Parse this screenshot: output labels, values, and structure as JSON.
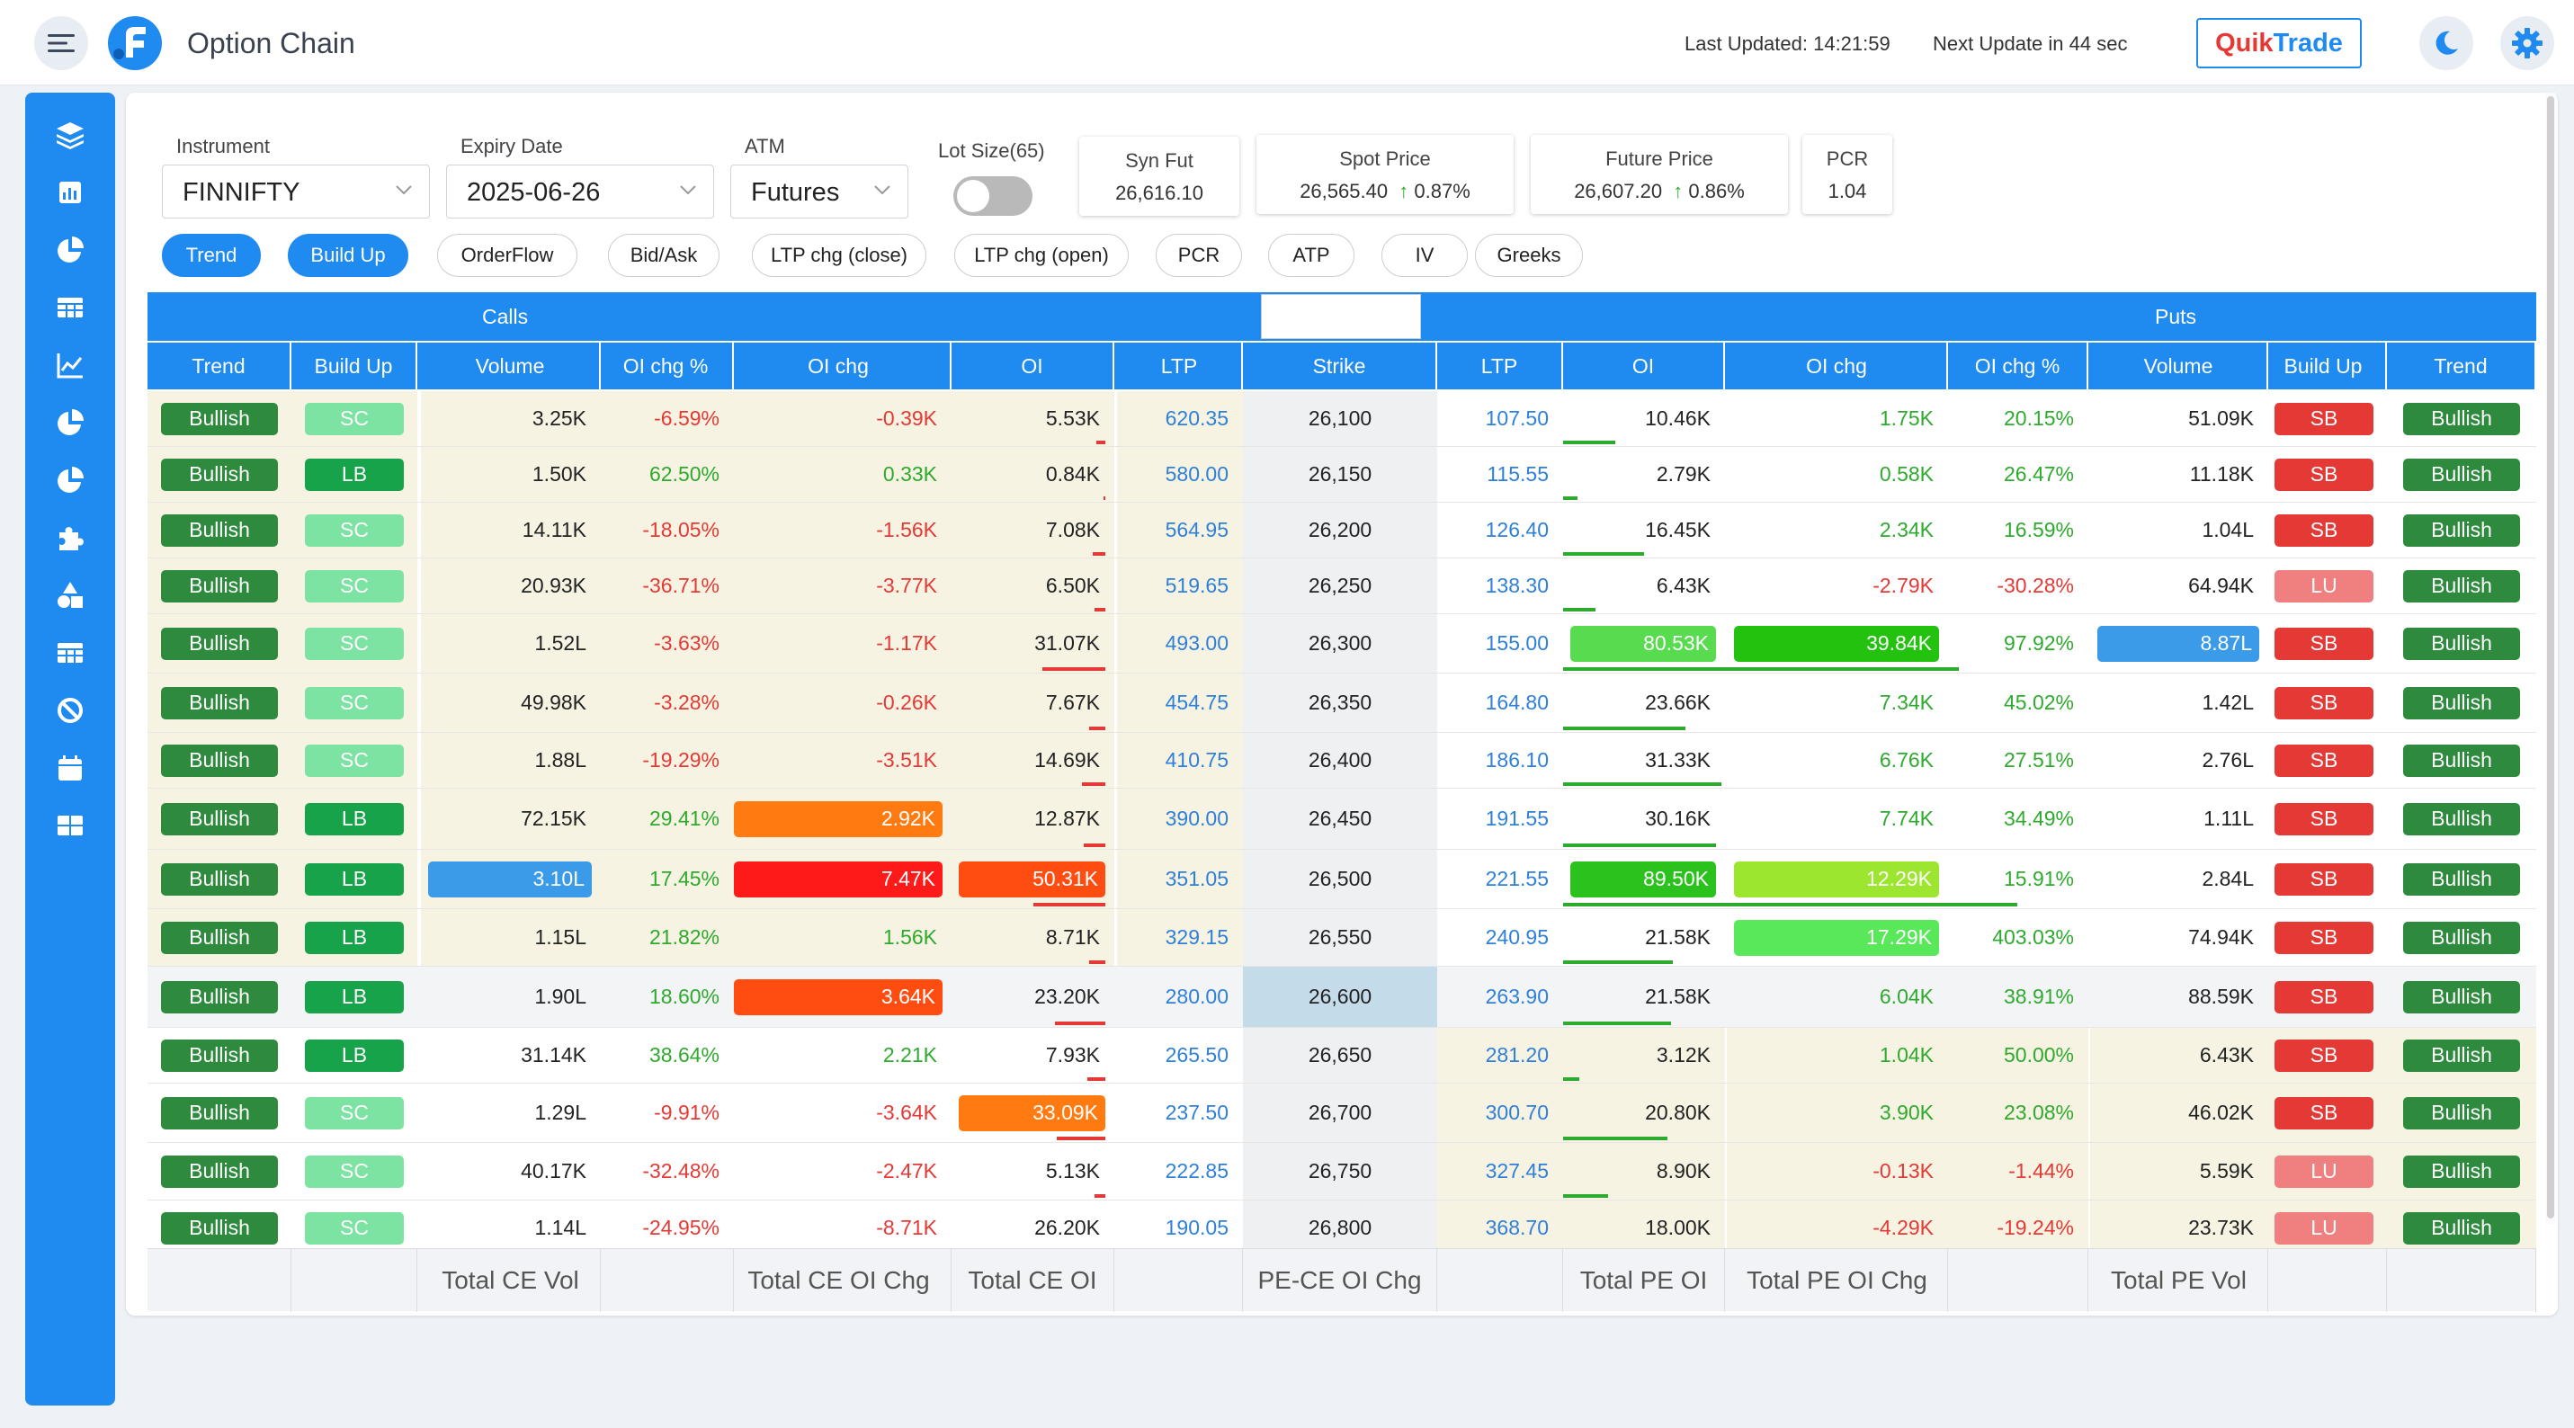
{
  "header": {
    "title": "Option Chain",
    "last_updated": "Last Updated: 14:21:59",
    "next_update": "Next Update in 44 sec",
    "quiktrade_a": "Quik",
    "quiktrade_b": "Trade"
  },
  "filters": {
    "instrument_label": "Instrument",
    "instrument_value": "FINNIFTY",
    "expiry_label": "Expiry Date",
    "expiry_value": "2025-06-26",
    "atm_label": "ATM",
    "atm_value": "Futures",
    "lot_label": "Lot Size(65)"
  },
  "cards": {
    "synfut_label": "Syn Fut",
    "synfut_value": "26,616.10",
    "spot_label": "Spot Price",
    "spot_value": "26,565.40",
    "spot_chg": "0.87%",
    "fut_label": "Future Price",
    "fut_value": "26,607.20",
    "fut_chg": "0.86%",
    "pcr_label": "PCR",
    "pcr_value": "1.04"
  },
  "tabs": [
    "Trend",
    "Build Up",
    "OrderFlow",
    "Bid/Ask",
    "LTP chg (close)",
    "LTP chg (open)",
    "PCR",
    "ATP",
    "IV",
    "Greeks"
  ],
  "table": {
    "calls_label": "Calls",
    "puts_label": "Puts",
    "strike_count": "10",
    "headers": [
      "Trend",
      "Build Up",
      "Volume",
      "OI chg %",
      "OI chg",
      "OI",
      "LTP",
      "Strike",
      "LTP",
      "OI",
      "OI chg",
      "OI chg %",
      "Volume",
      "Build Up",
      "Trend"
    ],
    "rows": [
      {
        "ct": "Bullish",
        "cb": "SC",
        "cv": "3.25K",
        "cop": "-6.59%",
        "coc": "-0.39K",
        "coi": "5.53K",
        "cltp": "620.35",
        "strike": "26,100",
        "pltp": "107.50",
        "poi": "10.46K",
        "poc": "1.75K",
        "pop": "20.15%",
        "pv": "51.09K",
        "pb": "SB",
        "pt": "Bullish"
      },
      {
        "ct": "Bullish",
        "cb": "LB",
        "cv": "1.50K",
        "cop": "62.50%",
        "coc": "0.33K",
        "coi": "0.84K",
        "cltp": "580.00",
        "strike": "26,150",
        "pltp": "115.55",
        "poi": "2.79K",
        "poc": "0.58K",
        "pop": "26.47%",
        "pv": "11.18K",
        "pb": "SB",
        "pt": "Bullish"
      },
      {
        "ct": "Bullish",
        "cb": "SC",
        "cv": "14.11K",
        "cop": "-18.05%",
        "coc": "-1.56K",
        "coi": "7.08K",
        "cltp": "564.95",
        "strike": "26,200",
        "pltp": "126.40",
        "poi": "16.45K",
        "poc": "2.34K",
        "pop": "16.59%",
        "pv": "1.04L",
        "pb": "SB",
        "pt": "Bullish"
      },
      {
        "ct": "Bullish",
        "cb": "SC",
        "cv": "20.93K",
        "cop": "-36.71%",
        "coc": "-3.77K",
        "coi": "6.50K",
        "cltp": "519.65",
        "strike": "26,250",
        "pltp": "138.30",
        "poi": "6.43K",
        "poc": "-2.79K",
        "pop": "-30.28%",
        "pv": "64.94K",
        "pb": "LU",
        "pt": "Bullish"
      },
      {
        "ct": "Bullish",
        "cb": "SC",
        "cv": "1.52L",
        "cop": "-3.63%",
        "coc": "-1.17K",
        "coi": "31.07K",
        "cltp": "493.00",
        "strike": "26,300",
        "pltp": "155.00",
        "poi": "80.53K",
        "poc": "39.84K",
        "pop": "97.92%",
        "pv": "8.87L",
        "pb": "SB",
        "pt": "Bullish"
      },
      {
        "ct": "Bullish",
        "cb": "SC",
        "cv": "49.98K",
        "cop": "-3.28%",
        "coc": "-0.26K",
        "coi": "7.67K",
        "cltp": "454.75",
        "strike": "26,350",
        "pltp": "164.80",
        "poi": "23.66K",
        "poc": "7.34K",
        "pop": "45.02%",
        "pv": "1.42L",
        "pb": "SB",
        "pt": "Bullish"
      },
      {
        "ct": "Bullish",
        "cb": "SC",
        "cv": "1.88L",
        "cop": "-19.29%",
        "coc": "-3.51K",
        "coi": "14.69K",
        "cltp": "410.75",
        "strike": "26,400",
        "pltp": "186.10",
        "poi": "31.33K",
        "poc": "6.76K",
        "pop": "27.51%",
        "pv": "2.76L",
        "pb": "SB",
        "pt": "Bullish"
      },
      {
        "ct": "Bullish",
        "cb": "LB",
        "cv": "72.15K",
        "cop": "29.41%",
        "coc": "2.92K",
        "coi": "12.87K",
        "cltp": "390.00",
        "strike": "26,450",
        "pltp": "191.55",
        "poi": "30.16K",
        "poc": "7.74K",
        "pop": "34.49%",
        "pv": "1.11L",
        "pb": "SB",
        "pt": "Bullish"
      },
      {
        "ct": "Bullish",
        "cb": "LB",
        "cv": "3.10L",
        "cop": "17.45%",
        "coc": "7.47K",
        "coi": "50.31K",
        "cltp": "351.05",
        "strike": "26,500",
        "pltp": "221.55",
        "poi": "89.50K",
        "poc": "12.29K",
        "pop": "15.91%",
        "pv": "2.84L",
        "pb": "SB",
        "pt": "Bullish"
      },
      {
        "ct": "Bullish",
        "cb": "LB",
        "cv": "1.15L",
        "cop": "21.82%",
        "coc": "1.56K",
        "coi": "8.71K",
        "cltp": "329.15",
        "strike": "26,550",
        "pltp": "240.95",
        "poi": "21.58K",
        "poc": "17.29K",
        "pop": "403.03%",
        "pv": "74.94K",
        "pb": "SB",
        "pt": "Bullish"
      },
      {
        "ct": "Bullish",
        "cb": "LB",
        "cv": "1.90L",
        "cop": "18.60%",
        "coc": "3.64K",
        "coi": "23.20K",
        "cltp": "280.00",
        "strike": "26,600",
        "pltp": "263.90",
        "poi": "21.58K",
        "poc": "6.04K",
        "pop": "38.91%",
        "pv": "88.59K",
        "pb": "SB",
        "pt": "Bullish"
      },
      {
        "ct": "Bullish",
        "cb": "LB",
        "cv": "31.14K",
        "cop": "38.64%",
        "coc": "2.21K",
        "coi": "7.93K",
        "cltp": "265.50",
        "strike": "26,650",
        "pltp": "281.20",
        "poi": "3.12K",
        "poc": "1.04K",
        "pop": "50.00%",
        "pv": "6.43K",
        "pb": "SB",
        "pt": "Bullish"
      },
      {
        "ct": "Bullish",
        "cb": "SC",
        "cv": "1.29L",
        "cop": "-9.91%",
        "coc": "-3.64K",
        "coi": "33.09K",
        "cltp": "237.50",
        "strike": "26,700",
        "pltp": "300.70",
        "poi": "20.80K",
        "poc": "3.90K",
        "pop": "23.08%",
        "pv": "46.02K",
        "pb": "SB",
        "pt": "Bullish"
      },
      {
        "ct": "Bullish",
        "cb": "SC",
        "cv": "40.17K",
        "cop": "-32.48%",
        "coc": "-2.47K",
        "coi": "5.13K",
        "cltp": "222.85",
        "strike": "26,750",
        "pltp": "327.45",
        "poi": "8.90K",
        "poc": "-0.13K",
        "pop": "-1.44%",
        "pv": "5.59K",
        "pb": "LU",
        "pt": "Bullish"
      },
      {
        "ct": "Bullish",
        "cb": "SC",
        "cv": "1.14L",
        "cop": "-24.95%",
        "coc": "-8.71K",
        "coi": "26.20K",
        "cltp": "190.05",
        "strike": "26,800",
        "pltp": "368.70",
        "poi": "18.00K",
        "poc": "-4.29K",
        "pop": "-19.24%",
        "pv": "23.73K",
        "pb": "LU",
        "pt": "Bullish"
      }
    ],
    "footer": [
      "Total CE Vol",
      "Total CE OI Chg",
      "Total CE OI",
      "PE-CE OI Chg",
      "Total PE OI",
      "Total PE OI Chg",
      "Total PE Vol"
    ]
  },
  "colors": {
    "accent": "#1f8af0",
    "bullish": "#2e8b3e",
    "lb": "#16a34a",
    "sc": "#7de3a3",
    "sb": "#e53935",
    "lu": "#f07f7f",
    "quiktrade": "#e53935"
  }
}
